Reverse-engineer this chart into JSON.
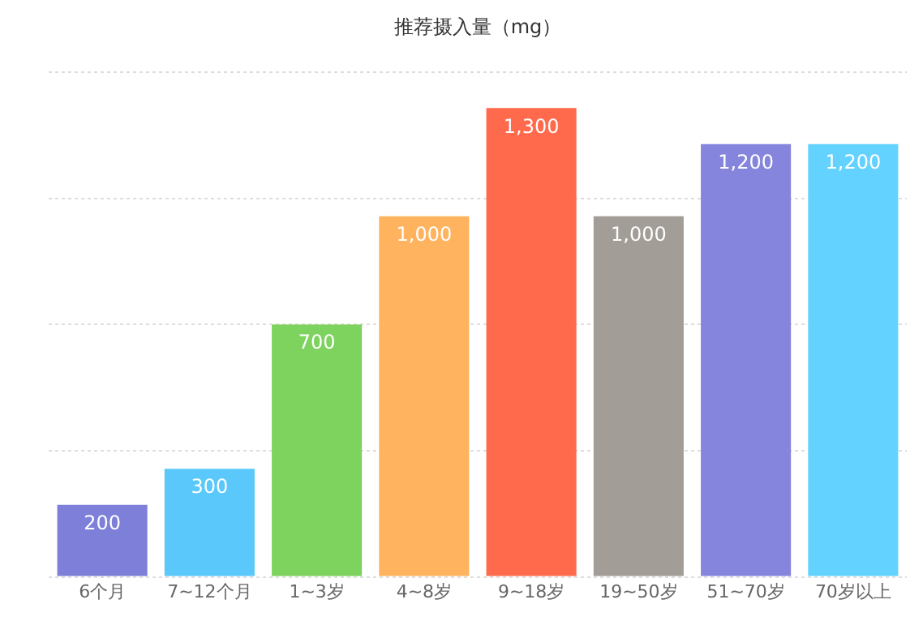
{
  "chart_data": {
    "type": "bar",
    "title": "推荐摄入量（mg）",
    "categories": [
      "6个月",
      "7~12个月",
      "1~3岁",
      "4~8岁",
      "9~18岁",
      "19~50岁",
      "51~70岁",
      "70岁以上"
    ],
    "values": [
      200,
      300,
      700,
      1000,
      1300,
      1000,
      1200,
      1200
    ],
    "colors": [
      "#7d7fd8",
      "#5ac8fa",
      "#7dd35e",
      "#ffb35e",
      "#ff6a4d",
      "#a29d97",
      "#8585de",
      "#64d2ff"
    ],
    "value_labels": [
      "200",
      "300",
      "700",
      "1,000",
      "1,300",
      "1,000",
      "1,200",
      "1,200"
    ],
    "ylim": [
      0,
      1400
    ],
    "yticks": [
      {
        "value": 0,
        "label": null
      },
      {
        "value": 350,
        "label": null
      },
      {
        "value": 700,
        "label": null
      },
      {
        "value": 1050,
        "label": null
      },
      {
        "value": 1400,
        "label": null
      }
    ],
    "grid": "y",
    "tick_labels": "x",
    "legend": false
  }
}
